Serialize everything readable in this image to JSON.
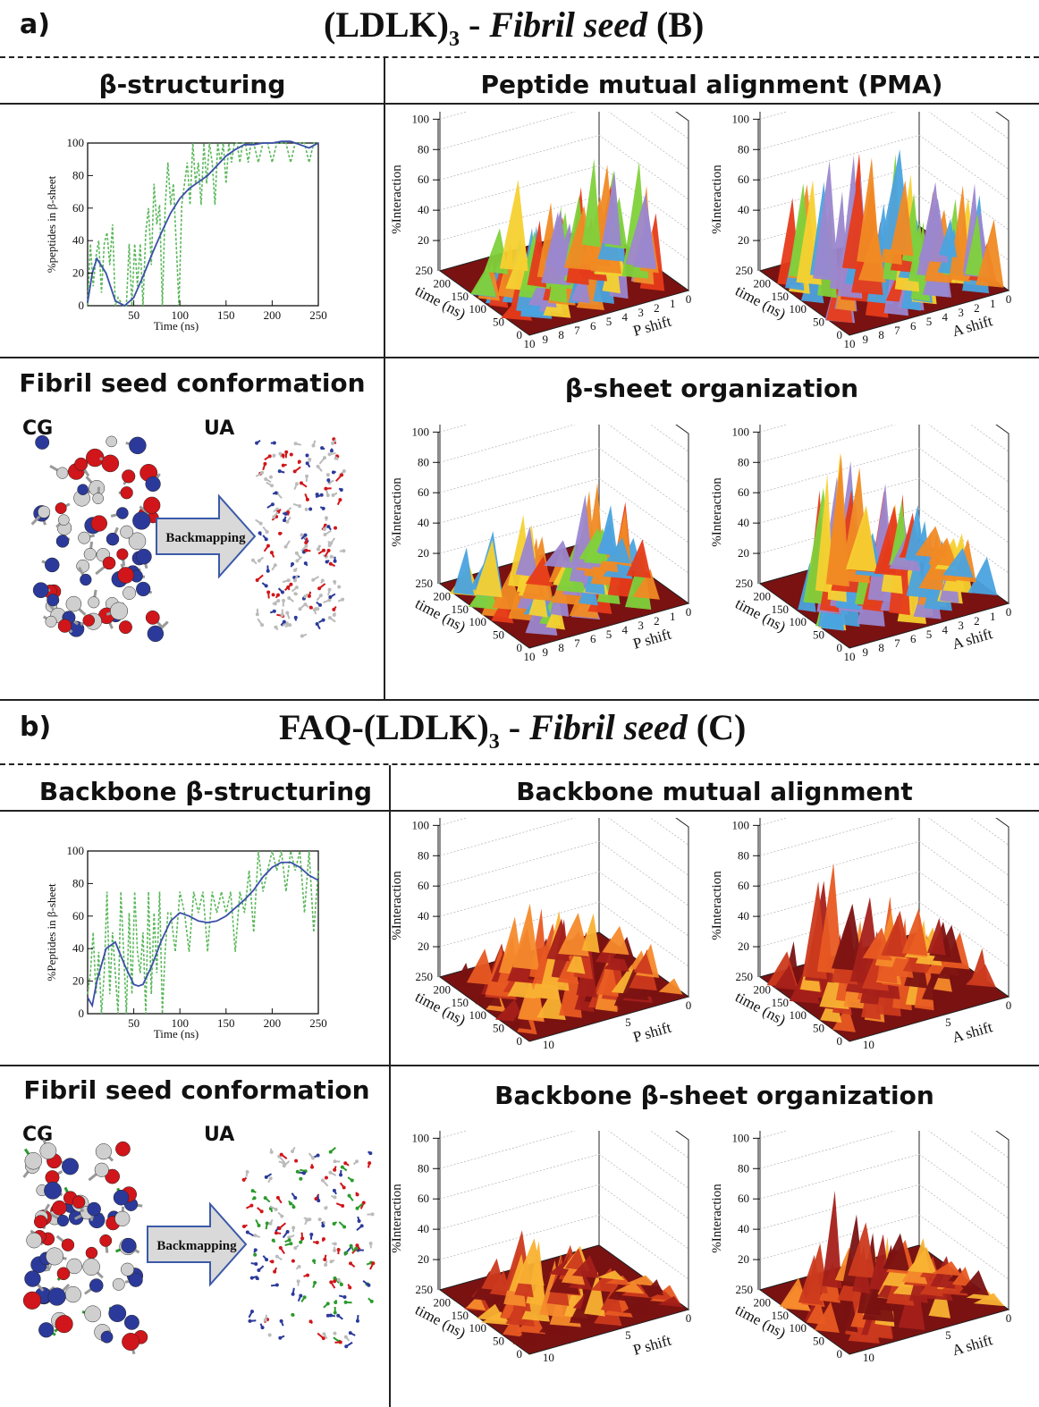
{
  "panel_a": {
    "letter": "a)",
    "title_pre": "(LDLK)",
    "title_sub": "3",
    "title_mid": " - ",
    "title_italic": "Fibril seed",
    "title_post": " (B)",
    "col_left_header": "β-structuring",
    "col_right_header": "Peptide mutual alignment (PMA)",
    "conf_header": "Fibril seed conformation",
    "org_header": "β-sheet organization",
    "cg_label": "CG",
    "ua_label": "UA",
    "arrow_label": "Backmapping"
  },
  "panel_b": {
    "letter": "b)",
    "title_pre": "FAQ-(LDLK)",
    "title_sub": "3",
    "title_mid": " - ",
    "title_italic": "Fibril seed",
    "title_post": " (C)",
    "col_left_header": "Backbone β-structuring",
    "col_right_header": "Backbone mutual alignment",
    "conf_header": "Fibril seed conformation",
    "org_header": "Backbone β-sheet organization",
    "cg_label": "CG",
    "ua_label": "UA",
    "arrow_label": "Backmapping"
  },
  "colors": {
    "smooth_line": "#3a4fa8",
    "raw_line": "#5cb85c",
    "floor": "#7a1212",
    "violet": "#9b87cf",
    "cg_blue": "#2b3a9a",
    "cg_red": "#d0161a",
    "cg_white": "#cfcfcf",
    "arrow_fill": "#d9d9d9",
    "arrow_stroke": "#3b5aa8"
  },
  "chart_data": [
    {
      "id": "a_beta_structuring",
      "type": "line",
      "xlabel": "Time (ns)",
      "ylabel": "%peptides in β-sheet",
      "xlim": [
        0,
        250
      ],
      "ylim": [
        0,
        100
      ],
      "xticks": [
        "50",
        "100",
        "150",
        "200",
        "250"
      ],
      "yticks": [
        "0",
        "20",
        "40",
        "60",
        "80",
        "100"
      ],
      "smooth": {
        "x": [
          0,
          5,
          10,
          20,
          30,
          40,
          50,
          60,
          70,
          80,
          90,
          100,
          110,
          120,
          130,
          140,
          150,
          160,
          170,
          180,
          190,
          200,
          210,
          220,
          230,
          240,
          250
        ],
        "y": [
          2,
          20,
          29,
          20,
          3,
          0,
          5,
          18,
          32,
          45,
          57,
          66,
          72,
          76,
          80,
          86,
          92,
          96,
          99,
          99,
          100,
          100,
          101,
          101,
          99,
          97,
          100
        ]
      },
      "raw": {
        "x": [
          0,
          3,
          6,
          9,
          12,
          15,
          18,
          21,
          24,
          27,
          30,
          33,
          36,
          39,
          42,
          45,
          48,
          51,
          54,
          57,
          60,
          63,
          66,
          69,
          72,
          75,
          78,
          81,
          84,
          87,
          90,
          93,
          96,
          99,
          102,
          105,
          108,
          111,
          114,
          117,
          120,
          123,
          126,
          129,
          132,
          135,
          138,
          141,
          144,
          147,
          150,
          153,
          156,
          159,
          162,
          165,
          168,
          171,
          174,
          177,
          180,
          185,
          190,
          195,
          200,
          205,
          210,
          215,
          220,
          225,
          230,
          235,
          240,
          245,
          250
        ],
        "y": [
          0,
          38,
          12,
          30,
          40,
          8,
          38,
          45,
          25,
          50,
          0,
          5,
          2,
          0,
          0,
          38,
          0,
          38,
          12,
          38,
          0,
          45,
          60,
          25,
          75,
          50,
          62,
          0,
          60,
          88,
          62,
          75,
          38,
          0,
          62,
          75,
          88,
          62,
          100,
          75,
          88,
          62,
          100,
          75,
          100,
          88,
          62,
          100,
          88,
          100,
          75,
          100,
          88,
          100,
          100,
          88,
          100,
          100,
          88,
          100,
          100,
          88,
          100,
          100,
          88,
          100,
          100,
          100,
          88,
          100,
          100,
          100,
          88,
          100,
          100
        ]
      }
    },
    {
      "id": "b_backbone_beta_structuring",
      "type": "line",
      "xlabel": "Time (ns)",
      "ylabel": "%Peptides in β-sheet",
      "xlim": [
        0,
        250
      ],
      "ylim": [
        0,
        100
      ],
      "xticks": [
        "50",
        "100",
        "150",
        "200",
        "250"
      ],
      "yticks": [
        "0",
        "20",
        "40",
        "60",
        "80",
        "100"
      ],
      "smooth": {
        "x": [
          0,
          5,
          10,
          20,
          30,
          40,
          50,
          55,
          60,
          70,
          80,
          90,
          100,
          110,
          120,
          130,
          140,
          150,
          160,
          170,
          180,
          190,
          200,
          210,
          220,
          230,
          240,
          250
        ],
        "y": [
          10,
          5,
          20,
          40,
          44,
          30,
          18,
          17,
          18,
          30,
          45,
          57,
          62,
          60,
          57,
          56,
          57,
          60,
          65,
          70,
          76,
          84,
          90,
          93,
          93,
          90,
          85,
          82
        ]
      },
      "raw": {
        "x": [
          0,
          3,
          6,
          9,
          12,
          15,
          18,
          21,
          24,
          27,
          30,
          33,
          36,
          39,
          42,
          45,
          48,
          51,
          54,
          57,
          60,
          63,
          66,
          69,
          72,
          75,
          78,
          81,
          84,
          87,
          90,
          95,
          100,
          105,
          110,
          115,
          120,
          125,
          130,
          135,
          140,
          145,
          150,
          155,
          160,
          165,
          170,
          175,
          180,
          185,
          190,
          195,
          200,
          205,
          210,
          215,
          220,
          225,
          230,
          235,
          240,
          245,
          250
        ],
        "y": [
          12,
          25,
          50,
          12,
          38,
          0,
          25,
          75,
          12,
          50,
          25,
          0,
          75,
          38,
          0,
          62,
          12,
          75,
          38,
          25,
          50,
          0,
          75,
          12,
          62,
          25,
          75,
          0,
          38,
          62,
          62,
          38,
          75,
          62,
          38,
          75,
          62,
          75,
          38,
          75,
          62,
          75,
          62,
          75,
          38,
          75,
          62,
          88,
          50,
          100,
          75,
          88,
          100,
          88,
          100,
          75,
          100,
          88,
          100,
          62,
          100,
          50,
          88
        ]
      }
    },
    {
      "id": "a_pma_p",
      "type": "area",
      "zlabel": "%Interaction",
      "ylabel": "time (ns)",
      "xlabel": "P shift",
      "zticks": [
        "20",
        "40",
        "60",
        "80",
        "100"
      ],
      "timeticks": [
        "0",
        "50",
        "100",
        "150",
        "200",
        "250"
      ],
      "shiftticks": [
        "10",
        "9",
        "8",
        "7",
        "6",
        "5",
        "4",
        "3",
        "2",
        "1",
        "0"
      ],
      "palette": [
        "#9b87cf",
        "#4aa3df",
        "#7fd13b",
        "#f5d130",
        "#f08a24",
        "#e63b1a"
      ],
      "peaks": [
        0.35,
        0.55,
        0.45,
        0.6,
        0.5,
        0.7,
        0.55,
        0.65,
        0.75,
        0.6
      ]
    },
    {
      "id": "a_pma_a",
      "type": "area",
      "zlabel": "%Interaction",
      "ylabel": "time (ns)",
      "xlabel": "A shift",
      "zticks": [
        "20",
        "40",
        "60",
        "80",
        "100"
      ],
      "timeticks": [
        "0",
        "50",
        "100",
        "150",
        "200",
        "250"
      ],
      "shiftticks": [
        "10",
        "9",
        "8",
        "7",
        "6",
        "5",
        "4",
        "3",
        "2",
        "1",
        "0"
      ],
      "palette": [
        "#9b87cf",
        "#4aa3df",
        "#7fd13b",
        "#f5d130",
        "#f08a24",
        "#e63b1a"
      ],
      "peaks": [
        0.55,
        0.75,
        0.95,
        0.85,
        0.7,
        0.8,
        0.65,
        0.7,
        0.6,
        0.55
      ]
    },
    {
      "id": "a_org_p",
      "type": "area",
      "zlabel": "%Interaction",
      "ylabel": "time (ns)",
      "xlabel": "P shift",
      "zticks": [
        "20",
        "40",
        "60",
        "80",
        "100"
      ],
      "timeticks": [
        "0",
        "50",
        "100",
        "150",
        "200",
        "250"
      ],
      "shiftticks": [
        "10",
        "9",
        "8",
        "7",
        "6",
        "5",
        "4",
        "3",
        "2",
        "1",
        "0"
      ],
      "palette": [
        "#9b87cf",
        "#4aa3df",
        "#7fd13b",
        "#f5d130",
        "#f08a24",
        "#e63b1a"
      ],
      "peaks": [
        0.3,
        0.4,
        0.35,
        0.45,
        0.3,
        0.4,
        0.35,
        0.6,
        0.3,
        0.35
      ]
    },
    {
      "id": "a_org_a",
      "type": "area",
      "zlabel": "%Interaction",
      "ylabel": "time (ns)",
      "xlabel": "A shift",
      "zticks": [
        "20",
        "40",
        "60",
        "80",
        "100"
      ],
      "timeticks": [
        "0",
        "50",
        "100",
        "150",
        "200",
        "250"
      ],
      "shiftticks": [
        "10",
        "9",
        "8",
        "7",
        "6",
        "5",
        "4",
        "3",
        "2",
        "1",
        "0"
      ],
      "palette": [
        "#9b87cf",
        "#4aa3df",
        "#7fd13b",
        "#f5d130",
        "#f08a24",
        "#e63b1a"
      ],
      "peaks": [
        0.6,
        0.85,
        0.95,
        0.9,
        0.75,
        0.6,
        0.5,
        0.45,
        0.4,
        0.35
      ]
    },
    {
      "id": "b_bma_p",
      "type": "area",
      "zlabel": "%Interaction",
      "ylabel": "time (ns)",
      "xlabel": "P shift",
      "zticks": [
        "20",
        "40",
        "60",
        "80",
        "100"
      ],
      "timeticks": [
        "0",
        "50",
        "100",
        "150",
        "200",
        "250"
      ],
      "shiftticks": [
        "10",
        "5",
        "0"
      ],
      "palette": [
        "#7a1212",
        "#a5201a",
        "#cc3a1e",
        "#e85a22",
        "#f58a2c",
        "#f9b233"
      ],
      "peaks": [
        0.25,
        0.35,
        0.4,
        0.45,
        0.5,
        0.4,
        0.35,
        0.3,
        0.25,
        0.2
      ]
    },
    {
      "id": "b_bma_a",
      "type": "area",
      "zlabel": "%Interaction",
      "ylabel": "time (ns)",
      "xlabel": "A shift",
      "zticks": [
        "20",
        "40",
        "60",
        "80",
        "100"
      ],
      "timeticks": [
        "0",
        "50",
        "100",
        "150",
        "200",
        "250"
      ],
      "shiftticks": [
        "10",
        "5",
        "0"
      ],
      "palette": [
        "#7a1212",
        "#a5201a",
        "#cc3a1e",
        "#e85a22",
        "#f58a2c",
        "#f9b233"
      ],
      "peaks": [
        0.35,
        0.55,
        0.75,
        0.7,
        0.6,
        0.55,
        0.45,
        0.4,
        0.3,
        0.25
      ]
    },
    {
      "id": "b_org_p",
      "type": "area",
      "zlabel": "%Interaction",
      "ylabel": "time (ns)",
      "xlabel": "P shift",
      "zticks": [
        "20",
        "40",
        "60",
        "80",
        "100"
      ],
      "timeticks": [
        "0",
        "50",
        "100",
        "150",
        "200",
        "250"
      ],
      "shiftticks": [
        "10",
        "5",
        "0"
      ],
      "palette": [
        "#7a1212",
        "#a5201a",
        "#cc3a1e",
        "#e85a22",
        "#f58a2c",
        "#f9b233"
      ],
      "peaks": [
        0.15,
        0.25,
        0.35,
        0.4,
        0.35,
        0.3,
        0.2,
        0.15,
        0.1,
        0.1
      ]
    },
    {
      "id": "b_org_a",
      "type": "area",
      "zlabel": "%Interaction",
      "ylabel": "time (ns)",
      "xlabel": "A shift",
      "zticks": [
        "20",
        "40",
        "60",
        "80",
        "100"
      ],
      "timeticks": [
        "0",
        "50",
        "100",
        "150",
        "200",
        "250"
      ],
      "shiftticks": [
        "10",
        "5",
        "0"
      ],
      "palette": [
        "#7a1212",
        "#a5201a",
        "#cc3a1e",
        "#e85a22",
        "#f58a2c",
        "#f9b233"
      ],
      "peaks": [
        0.2,
        0.35,
        0.5,
        0.65,
        0.5,
        0.4,
        0.3,
        0.25,
        0.2,
        0.15
      ]
    }
  ]
}
